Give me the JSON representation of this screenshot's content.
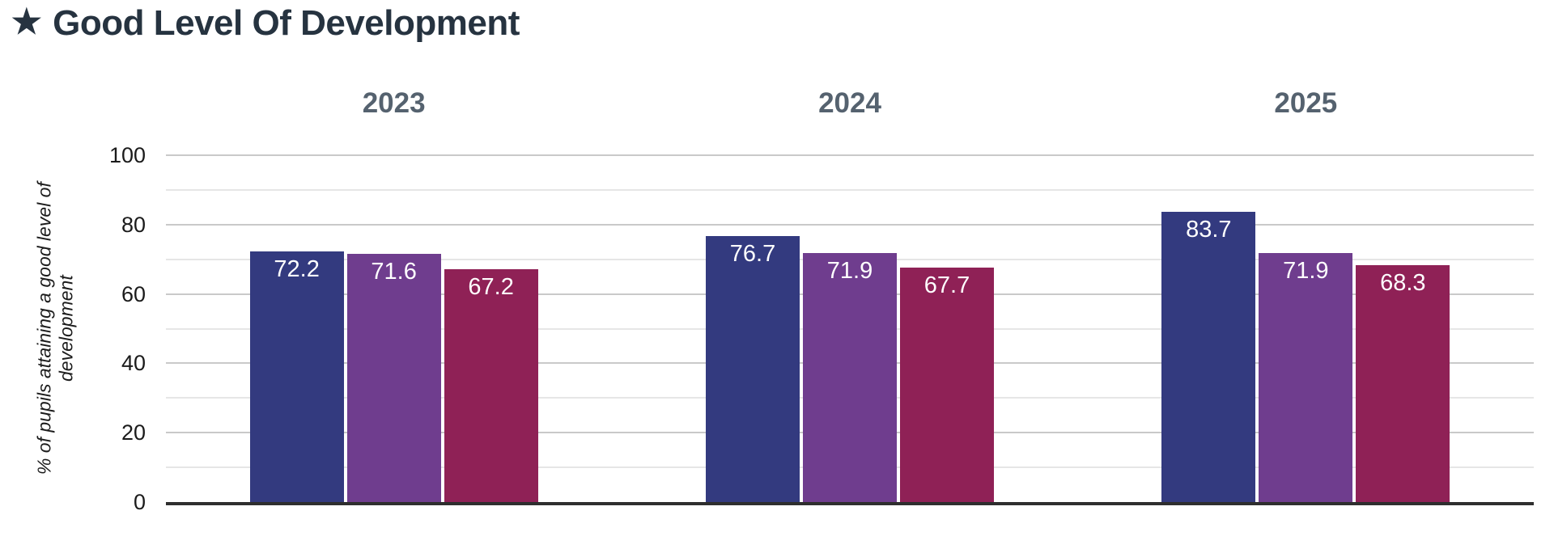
{
  "header": {
    "icon": "★",
    "title": "Good Level Of Development"
  },
  "chart_data": {
    "type": "bar",
    "title": "Good Level Of Development",
    "categories": [
      "2023",
      "2024",
      "2025"
    ],
    "series": [
      {
        "color": "#333a7f",
        "values": [
          72.2,
          76.7,
          83.7
        ]
      },
      {
        "color": "#6f3d8e",
        "values": [
          71.6,
          71.9,
          71.9
        ]
      },
      {
        "color": "#8f2156",
        "values": [
          67.2,
          67.7,
          68.3
        ]
      }
    ],
    "xlabel": "",
    "ylabel": "% of pupils attaining a good level of development",
    "ylim": [
      0,
      100
    ],
    "yticks": [
      0,
      20,
      40,
      60,
      80,
      100
    ],
    "minor_gridline_step": 10,
    "grid": "horizontal",
    "legend": "none",
    "value_label_position": "inside-top",
    "value_label_format": "one-decimal"
  },
  "colors": {
    "background": "#ffffff",
    "title_text": "#263340",
    "category_label": "#55626f",
    "tick_label": "#1b1b1b",
    "grid_major": "#c9c9c9",
    "grid_minor": "#e6e6e6",
    "axis_line": "#2e2e2e",
    "value_label": "#ffffff"
  }
}
